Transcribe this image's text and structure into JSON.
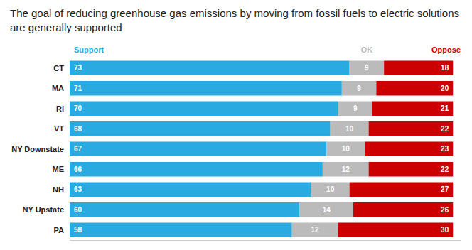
{
  "chart_data": {
    "type": "bar",
    "orientation": "horizontal",
    "stacked": true,
    "data_labels": true,
    "tick_labels": false,
    "grid": false,
    "title": "The goal of reducing greenhouse gas emissions by moving from fossil fuels to electric solutions are generally supported",
    "categories": [
      "CT",
      "MA",
      "RI",
      "VT",
      "NY Downstate",
      "ME",
      "NH",
      "NY Upstate",
      "PA"
    ],
    "series": [
      {
        "name": "Support",
        "color": "#29ABE2",
        "values": [
          73,
          71,
          70,
          68,
          67,
          66,
          63,
          60,
          58
        ]
      },
      {
        "name": "OK",
        "color": "#BBBBBB",
        "values": [
          9,
          9,
          9,
          10,
          10,
          12,
          10,
          14,
          12
        ]
      },
      {
        "name": "Oppose",
        "color": "#CC0000",
        "values": [
          18,
          20,
          21,
          22,
          23,
          22,
          27,
          26,
          30
        ]
      }
    ],
    "xlim": [
      0,
      102
    ]
  }
}
